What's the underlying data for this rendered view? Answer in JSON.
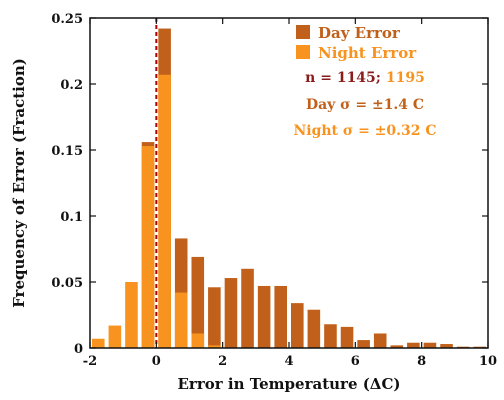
{
  "chart_data": {
    "type": "bar",
    "xlabel": "Error in Temperature (ΔC)",
    "ylabel": "Frequency of Error (Fraction)",
    "xlim": [
      -2,
      10
    ],
    "ylim": [
      0,
      0.25
    ],
    "xticks": [
      -2,
      0,
      2,
      4,
      6,
      8,
      10
    ],
    "yticks": [
      0,
      0.05,
      0.1,
      0.15,
      0.2,
      0.25
    ],
    "ytick_labels": [
      "0",
      "0.05",
      "0.1",
      "0.15",
      "0.2",
      "0.25"
    ],
    "bin_width": 0.5,
    "reference_line_x": 0,
    "series": [
      {
        "name": "Day Error",
        "color": "#c0601a",
        "x": [
          -0.25,
          0.25,
          0.75,
          1.25,
          1.75,
          2.25,
          2.75,
          3.25,
          3.75,
          4.25,
          4.75,
          5.25,
          5.75,
          6.25,
          6.75,
          7.25,
          7.75,
          8.25,
          8.75,
          9.25,
          9.75
        ],
        "values": [
          0.156,
          0.242,
          0.083,
          0.069,
          0.046,
          0.053,
          0.06,
          0.047,
          0.047,
          0.034,
          0.029,
          0.018,
          0.016,
          0.006,
          0.011,
          0.002,
          0.004,
          0.004,
          0.003,
          0.001,
          0.001
        ]
      },
      {
        "name": "Night Error",
        "color": "#f7931e",
        "x": [
          -1.75,
          -1.25,
          -0.75,
          -0.25,
          0.25,
          0.75,
          1.25,
          1.75
        ],
        "values": [
          0.007,
          0.017,
          0.05,
          0.153,
          0.207,
          0.042,
          0.011,
          0.002
        ]
      }
    ],
    "legend_position": "top-right",
    "annotations": {
      "n_prefix": "n = 1145; ",
      "n_night": "1195",
      "day_sigma": "Day σ = ±1.4 C",
      "night_sigma": "Night σ = ±0.32 C"
    }
  }
}
